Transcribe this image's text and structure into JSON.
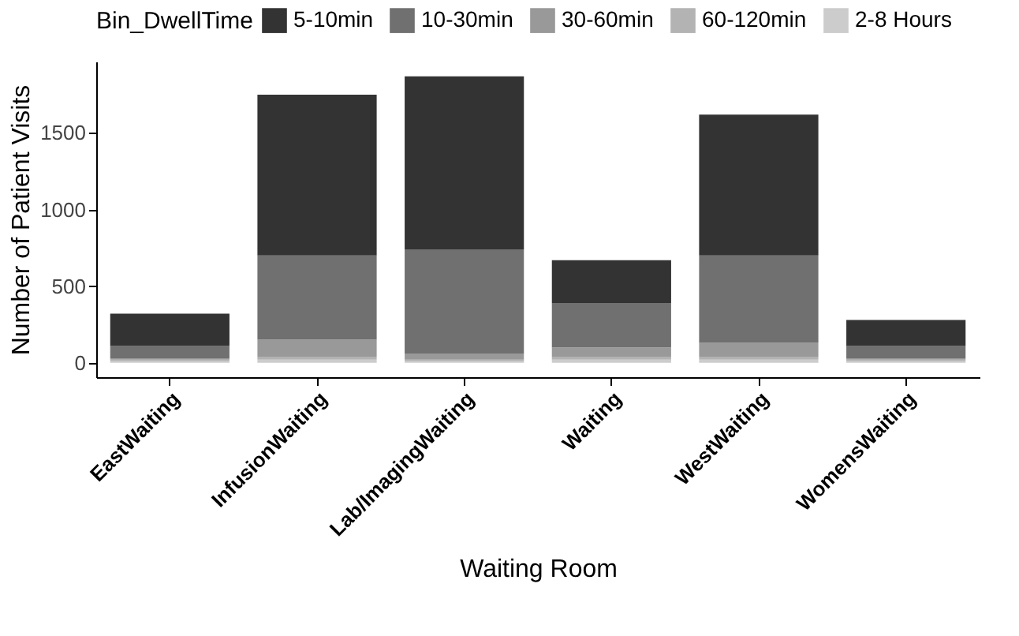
{
  "chart_data": {
    "type": "bar",
    "stacked": true,
    "xlabel": "Waiting Room",
    "ylabel": "Number of Patient Visits",
    "legend_title": "Bin_DwellTime",
    "legend": "top",
    "categories": [
      "EastWaiting",
      "InfusionWaiting",
      "Lab/ImagingWaiting",
      "Waiting",
      "WestWaiting",
      "WomensWaiting"
    ],
    "series": [
      {
        "name": "2-8 Hours",
        "color": "#cccccc",
        "values": [
          10,
          20,
          10,
          20,
          20,
          10
        ]
      },
      {
        "name": "60-120min",
        "color": "#b3b3b3",
        "values": [
          10,
          20,
          10,
          20,
          20,
          10
        ]
      },
      {
        "name": "30-60min",
        "color": "#999999",
        "values": [
          10,
          110,
          40,
          60,
          90,
          10
        ]
      },
      {
        "name": "10-30min",
        "color": "#707070",
        "values": [
          80,
          550,
          680,
          290,
          570,
          80
        ]
      },
      {
        "name": "5-10min",
        "color": "#333333",
        "values": [
          210,
          1050,
          1130,
          280,
          920,
          170
        ]
      }
    ],
    "ylim": [
      -94,
      1966
    ],
    "yticks": [
      0,
      500,
      1000,
      1500
    ],
    "grid": false
  }
}
